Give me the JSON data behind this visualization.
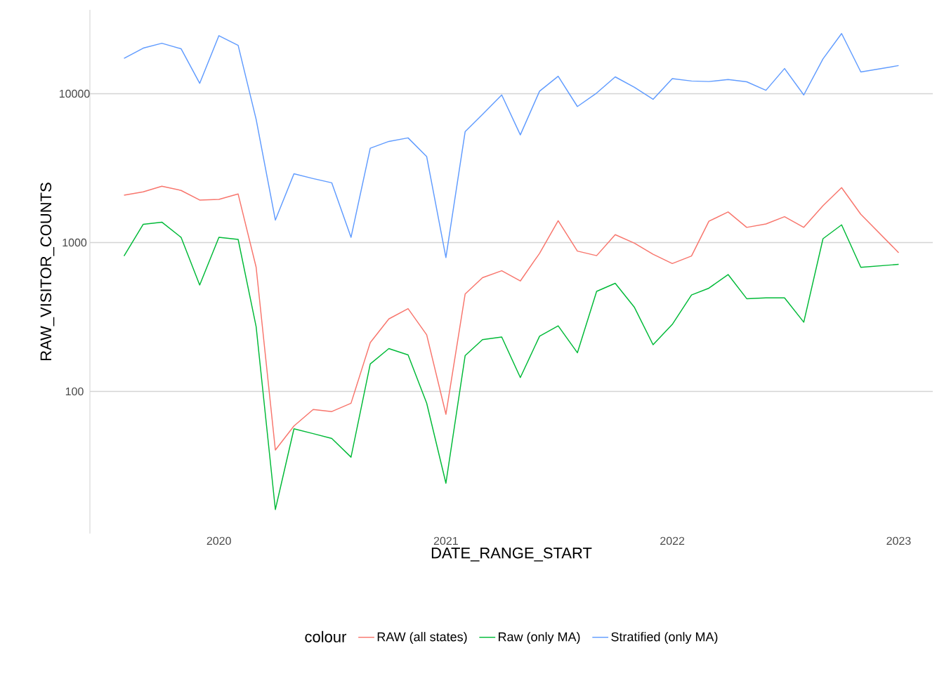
{
  "chart_data": {
    "type": "line",
    "xlabel": "DATE_RANGE_START",
    "ylabel": "RAW_VISITOR_COUNTS",
    "legend_title": "colour",
    "legend": "bottom",
    "grid": "y",
    "log": "y",
    "x": [
      "2019-08",
      "2019-09",
      "2019-10",
      "2019-11",
      "2019-12",
      "2020-01",
      "2020-02",
      "2020-03",
      "2020-04",
      "2020-05",
      "2020-06",
      "2020-07",
      "2020-08",
      "2020-09",
      "2020-10",
      "2020-11",
      "2020-12",
      "2021-01",
      "2021-02",
      "2021-03",
      "2021-04",
      "2021-05",
      "2021-06",
      "2021-07",
      "2021-08",
      "2021-09",
      "2021-10",
      "2021-11",
      "2021-12",
      "2022-01",
      "2022-02",
      "2022-03",
      "2022-04",
      "2022-05",
      "2022-06",
      "2022-07",
      "2022-08",
      "2022-09",
      "2022-10",
      "2022-11",
      "2023-01"
    ],
    "xlim": [
      "2019-06-07",
      "2023-02-25"
    ],
    "xticks": [
      "2020",
      "2021",
      "2022",
      "2023"
    ],
    "ylim": [
      11.1,
      36600
    ],
    "yticks": [
      100,
      1000,
      10000
    ],
    "series": [
      {
        "name": "RAW (all states)",
        "color": "#f8766d",
        "values": [
          2080,
          2190,
          2390,
          2240,
          1930,
          1950,
          2120,
          684,
          40.4,
          58.6,
          75.7,
          73.3,
          83.3,
          213,
          307,
          360,
          240,
          70.3,
          451,
          581,
          647,
          552,
          847,
          1403,
          877,
          817,
          1130,
          991,
          835,
          723,
          813,
          1391,
          1606,
          1265,
          1334,
          1493,
          1265,
          1770,
          2340,
          1549,
          855
        ]
      },
      {
        "name": "Raw (only MA)",
        "color": "#00ba38",
        "values": [
          813,
          1327,
          1371,
          1084,
          519,
          1084,
          1050,
          273,
          16.1,
          56.1,
          52.1,
          48.3,
          36.2,
          153,
          194,
          176,
          83.4,
          24.2,
          174,
          223,
          232,
          124,
          235,
          276,
          182,
          470,
          533,
          367,
          206,
          282,
          445,
          494,
          610,
          420,
          425,
          425,
          292,
          1062,
          1316,
          682,
          714
        ]
      },
      {
        "name": "Stratified (only MA)",
        "color": "#619cff",
        "values": [
          17260,
          20230,
          21820,
          20040,
          11740,
          24540,
          21130,
          6730,
          1416,
          2897,
          2690,
          2520,
          1084,
          4300,
          4780,
          5050,
          3780,
          794,
          5560,
          7260,
          9810,
          5290,
          10400,
          13100,
          8200,
          10100,
          12970,
          11040,
          9170,
          12620,
          12170,
          12070,
          12450,
          12020,
          10540,
          14760,
          9810,
          17140,
          25350,
          13990,
          15450
        ]
      }
    ]
  }
}
